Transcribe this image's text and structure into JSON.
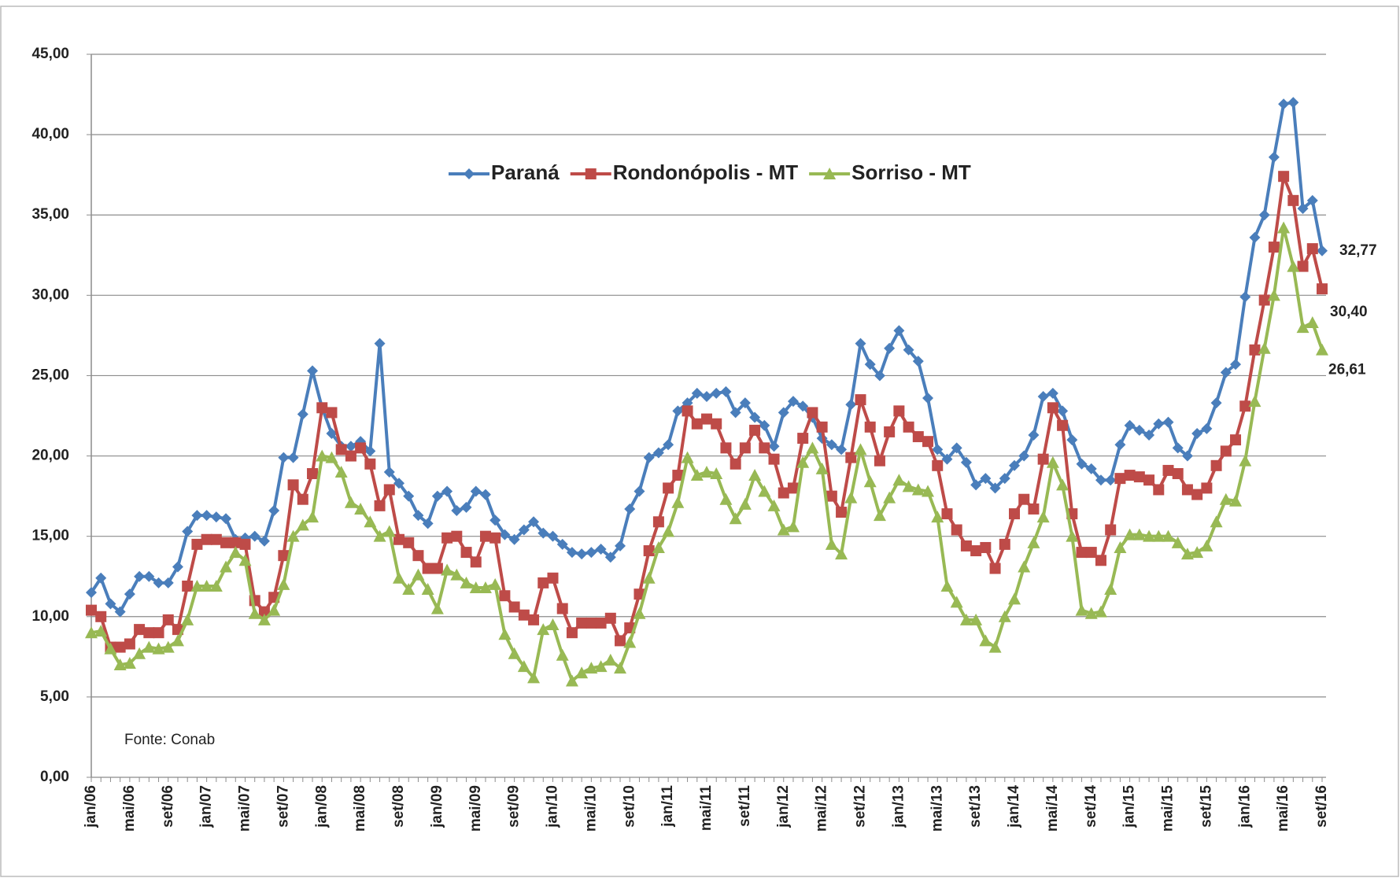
{
  "chart_data": {
    "type": "line",
    "annotation": "Fonte: Conab",
    "categories": [
      "jan/06",
      null,
      null,
      null,
      "mai/06",
      null,
      null,
      null,
      "set/06",
      null,
      null,
      null,
      "jan/07",
      null,
      null,
      null,
      "mai/07",
      null,
      null,
      null,
      "set/07",
      null,
      null,
      null,
      "jan/08",
      null,
      null,
      null,
      "mai/08",
      null,
      null,
      null,
      "set/08",
      null,
      null,
      null,
      "jan/09",
      null,
      null,
      null,
      "mai/09",
      null,
      null,
      null,
      "set/09",
      null,
      null,
      null,
      "jan/10",
      null,
      null,
      null,
      "mai/10",
      null,
      null,
      null,
      "set/10",
      null,
      null,
      null,
      "jan/11",
      null,
      null,
      null,
      "mai/11",
      null,
      null,
      null,
      "set/11",
      null,
      null,
      null,
      "jan/12",
      null,
      null,
      null,
      "mai/12",
      null,
      null,
      null,
      "set/12",
      null,
      null,
      null,
      "jan/13",
      null,
      null,
      null,
      "mai/13",
      null,
      null,
      null,
      "set/13",
      null,
      null,
      null,
      "jan/14",
      null,
      null,
      null,
      "mai/14",
      null,
      null,
      null,
      "set/14",
      null,
      null,
      null,
      "jan/15",
      null,
      null,
      null,
      "mai/15",
      null,
      null,
      null,
      "set/15",
      null,
      null,
      null,
      "jan/16",
      null,
      null,
      null,
      "mai/16",
      null,
      null,
      null,
      "set/16"
    ],
    "series": [
      {
        "name": "Paraná",
        "color": "#4a7ebb",
        "marker": "diamond",
        "values": [
          11.5,
          12.4,
          10.8,
          10.3,
          11.4,
          12.5,
          12.5,
          12.1,
          12.1,
          13.1,
          15.3,
          16.3,
          16.3,
          16.2,
          16.1,
          14.8,
          14.9,
          15.0,
          14.7,
          16.6,
          19.9,
          19.9,
          22.6,
          25.3,
          23.0,
          21.4,
          20.6,
          20.6,
          20.9,
          20.3,
          27.0,
          19.0,
          18.3,
          17.5,
          16.3,
          15.8,
          17.5,
          17.8,
          16.6,
          16.8,
          17.8,
          17.6,
          16.0,
          15.1,
          14.8,
          15.4,
          15.9,
          15.2,
          15.0,
          14.5,
          14.0,
          13.9,
          14.0,
          14.2,
          13.7,
          14.4,
          16.7,
          17.8,
          19.9,
          20.2,
          20.7,
          22.8,
          23.3,
          23.9,
          23.7,
          23.9,
          24.0,
          22.7,
          23.3,
          22.4,
          21.9,
          20.6,
          22.7,
          23.4,
          23.1,
          22.4,
          21.1,
          20.7,
          20.4,
          23.2,
          27.0,
          25.7,
          25.0,
          26.7,
          27.8,
          26.6,
          25.9,
          23.6,
          20.4,
          19.8,
          20.5,
          19.6,
          18.2,
          18.6,
          18.0,
          18.6,
          19.4,
          20.0,
          21.3,
          23.7,
          23.9,
          22.8,
          21.0,
          19.5,
          19.2,
          18.5,
          18.5,
          20.7,
          21.9,
          21.6,
          21.3,
          22.0,
          22.1,
          20.5,
          20.0,
          21.4,
          21.7,
          23.3,
          25.2,
          25.7,
          29.9,
          33.6,
          35.0,
          38.6,
          41.9,
          42.0,
          35.4,
          35.9,
          32.77
        ],
        "value_labels": [
          null,
          null,
          null,
          null,
          null,
          null,
          null,
          null,
          null,
          null,
          null,
          null,
          null,
          null,
          null,
          null,
          null,
          null,
          null,
          null,
          null,
          null,
          null,
          null,
          null,
          null,
          null,
          null,
          null,
          null,
          null,
          null,
          null,
          null,
          null,
          null,
          null,
          null,
          null,
          null,
          null,
          null,
          null,
          null,
          null,
          null,
          null,
          null,
          null,
          null,
          null,
          null,
          null,
          null,
          null,
          null,
          null,
          null,
          null,
          null,
          null,
          null,
          null,
          null,
          null,
          null,
          null,
          null,
          null,
          null,
          null,
          null,
          null,
          null,
          null,
          null,
          null,
          null,
          null,
          null,
          null,
          null,
          null,
          null,
          null,
          null,
          null,
          null,
          null,
          null,
          null,
          null,
          null,
          null,
          null,
          null,
          null,
          null,
          null,
          null,
          null,
          null,
          null,
          null,
          null,
          null,
          null,
          null,
          null,
          null,
          null,
          null,
          null,
          null,
          null,
          null,
          null,
          null,
          null,
          null,
          null,
          null,
          null,
          null,
          null,
          null,
          null,
          null,
          "32,77"
        ]
      },
      {
        "name": "Rondonópolis - MT",
        "color": "#be4b48",
        "marker": "square",
        "values": [
          10.4,
          10.0,
          8.1,
          8.1,
          8.3,
          9.2,
          9.0,
          9.0,
          9.8,
          9.2,
          11.9,
          14.5,
          14.8,
          14.8,
          14.6,
          14.6,
          14.5,
          11.0,
          10.3,
          11.2,
          13.8,
          18.2,
          17.3,
          18.9,
          23.0,
          22.7,
          20.4,
          20.0,
          20.5,
          19.5,
          16.9,
          17.9,
          14.8,
          14.6,
          13.8,
          13.0,
          13.0,
          14.9,
          15.0,
          14.0,
          13.4,
          15.0,
          14.9,
          11.3,
          10.6,
          10.1,
          9.8,
          12.1,
          12.4,
          10.5,
          9.0,
          9.6,
          9.6,
          9.6,
          9.9,
          8.5,
          9.3,
          11.4,
          14.1,
          15.9,
          18.0,
          18.8,
          22.8,
          22.0,
          22.3,
          22.0,
          20.5,
          19.5,
          20.5,
          21.6,
          20.5,
          19.8,
          17.7,
          18.0,
          21.1,
          22.7,
          21.8,
          17.5,
          16.5,
          19.9,
          23.5,
          21.8,
          19.7,
          21.5,
          22.8,
          21.8,
          21.2,
          20.9,
          19.4,
          16.4,
          15.4,
          14.4,
          14.1,
          14.3,
          13.0,
          14.5,
          16.4,
          17.3,
          16.7,
          19.8,
          23.0,
          21.9,
          16.4,
          14.0,
          14.0,
          13.5,
          15.4,
          18.6,
          18.8,
          18.7,
          18.5,
          17.9,
          19.1,
          18.9,
          17.9,
          17.6,
          18.0,
          19.4,
          20.3,
          21.0,
          23.1,
          26.6,
          29.7,
          33.0,
          37.4,
          35.9,
          31.8,
          32.9,
          30.4
        ],
        "value_labels": [
          null,
          null,
          null,
          null,
          null,
          null,
          null,
          null,
          null,
          null,
          null,
          null,
          null,
          null,
          null,
          null,
          null,
          null,
          null,
          null,
          null,
          null,
          null,
          null,
          null,
          null,
          null,
          null,
          null,
          null,
          null,
          null,
          null,
          null,
          null,
          null,
          null,
          null,
          null,
          null,
          null,
          null,
          null,
          null,
          null,
          null,
          null,
          null,
          null,
          null,
          null,
          null,
          null,
          null,
          null,
          null,
          null,
          null,
          null,
          null,
          null,
          null,
          null,
          null,
          null,
          null,
          null,
          null,
          null,
          null,
          null,
          null,
          null,
          null,
          null,
          null,
          null,
          null,
          null,
          null,
          null,
          null,
          null,
          null,
          null,
          null,
          null,
          null,
          null,
          null,
          null,
          null,
          null,
          null,
          null,
          null,
          null,
          null,
          null,
          null,
          null,
          null,
          null,
          null,
          null,
          null,
          null,
          null,
          null,
          null,
          null,
          null,
          null,
          null,
          null,
          null,
          null,
          null,
          null,
          null,
          null,
          null,
          null,
          null,
          null,
          null,
          null,
          null,
          "30,40"
        ]
      },
      {
        "name": "Sorriso - MT",
        "color": "#98b954",
        "marker": "triangle",
        "values": [
          9.0,
          9.1,
          8.0,
          7.0,
          7.1,
          7.7,
          8.1,
          8.0,
          8.1,
          8.5,
          9.8,
          11.9,
          11.9,
          11.9,
          13.1,
          14.0,
          13.5,
          10.2,
          9.8,
          10.4,
          12.0,
          15.0,
          15.7,
          16.2,
          20.0,
          19.9,
          19.0,
          17.1,
          16.7,
          15.9,
          15.0,
          15.3,
          12.4,
          11.7,
          12.6,
          11.7,
          10.5,
          12.9,
          12.6,
          12.1,
          11.8,
          11.8,
          12.0,
          8.9,
          7.7,
          6.9,
          6.2,
          9.2,
          9.5,
          7.6,
          6.0,
          6.5,
          6.8,
          6.9,
          7.3,
          6.8,
          8.4,
          10.2,
          12.4,
          14.3,
          15.3,
          17.1,
          19.9,
          18.8,
          19.0,
          18.9,
          17.3,
          16.1,
          17.0,
          18.8,
          17.8,
          16.9,
          15.4,
          15.6,
          19.6,
          20.5,
          19.2,
          14.5,
          13.9,
          17.4,
          20.4,
          18.4,
          16.3,
          17.4,
          18.5,
          18.1,
          17.9,
          17.8,
          16.2,
          11.9,
          10.9,
          9.8,
          9.8,
          8.5,
          8.1,
          10.0,
          11.1,
          13.1,
          14.6,
          16.2,
          19.6,
          18.2,
          15.0,
          10.4,
          10.2,
          10.3,
          11.7,
          14.3,
          15.1,
          15.1,
          15.0,
          15.0,
          15.0,
          14.6,
          13.9,
          14.0,
          14.4,
          15.9,
          17.3,
          17.2,
          19.7,
          23.4,
          26.7,
          30.0,
          34.2,
          31.8,
          28.0,
          28.3,
          26.61
        ],
        "value_labels": [
          null,
          null,
          null,
          null,
          null,
          null,
          null,
          null,
          null,
          null,
          null,
          null,
          null,
          null,
          null,
          null,
          null,
          null,
          null,
          null,
          null,
          null,
          null,
          null,
          null,
          null,
          null,
          null,
          null,
          null,
          null,
          null,
          null,
          null,
          null,
          null,
          null,
          null,
          null,
          null,
          null,
          null,
          null,
          null,
          null,
          null,
          null,
          null,
          null,
          null,
          null,
          null,
          null,
          null,
          null,
          null,
          null,
          null,
          null,
          null,
          null,
          null,
          null,
          null,
          null,
          null,
          null,
          null,
          null,
          null,
          null,
          null,
          null,
          null,
          null,
          null,
          null,
          null,
          null,
          null,
          null,
          null,
          null,
          null,
          null,
          null,
          null,
          null,
          null,
          null,
          null,
          null,
          null,
          null,
          null,
          null,
          null,
          null,
          null,
          null,
          null,
          null,
          null,
          null,
          null,
          null,
          null,
          null,
          null,
          null,
          null,
          null,
          null,
          null,
          null,
          null,
          null,
          null,
          null,
          null,
          null,
          null,
          null,
          null,
          null,
          null,
          null,
          null,
          "26,61"
        ]
      }
    ],
    "ylim": [
      0,
      45
    ],
    "yticks": [
      {
        "value": 0,
        "label": "0,00"
      },
      {
        "value": 5,
        "label": "5,00"
      },
      {
        "value": 10,
        "label": "10,00"
      },
      {
        "value": 15,
        "label": "15,00"
      },
      {
        "value": 20,
        "label": "20,00"
      },
      {
        "value": 25,
        "label": "25,00"
      },
      {
        "value": 30,
        "label": "30,00"
      },
      {
        "value": 35,
        "label": "35,00"
      },
      {
        "value": 40,
        "label": "40,00"
      },
      {
        "value": 45,
        "label": "45,00"
      }
    ],
    "grid": true,
    "legend": "top"
  }
}
